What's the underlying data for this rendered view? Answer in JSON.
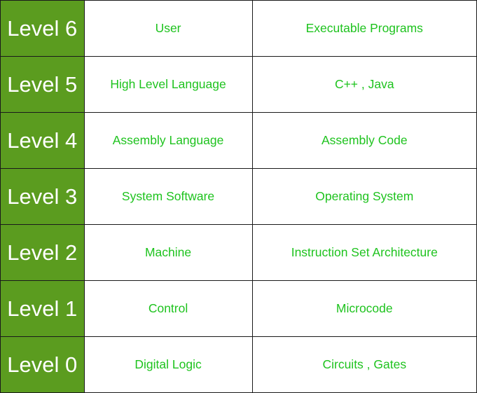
{
  "rows": [
    {
      "level": "Level 6",
      "name": "User",
      "example": "Executable Programs"
    },
    {
      "level": "Level 5",
      "name": "High Level Language",
      "example": "C++ , Java"
    },
    {
      "level": "Level 4",
      "name": "Assembly Language",
      "example": "Assembly Code"
    },
    {
      "level": "Level 3",
      "name": "System Software",
      "example": "Operating System"
    },
    {
      "level": "Level 2",
      "name": "Machine",
      "example": "Instruction Set Architecture"
    },
    {
      "level": "Level 1",
      "name": "Control",
      "example": "Microcode"
    },
    {
      "level": "Level 0",
      "name": "Digital Logic",
      "example": "Circuits , Gates"
    }
  ],
  "colors": {
    "level_background": "#5b9c1f",
    "level_text": "#ffffff",
    "cell_text": "#1ec31e",
    "border": "#1a1a1a"
  }
}
